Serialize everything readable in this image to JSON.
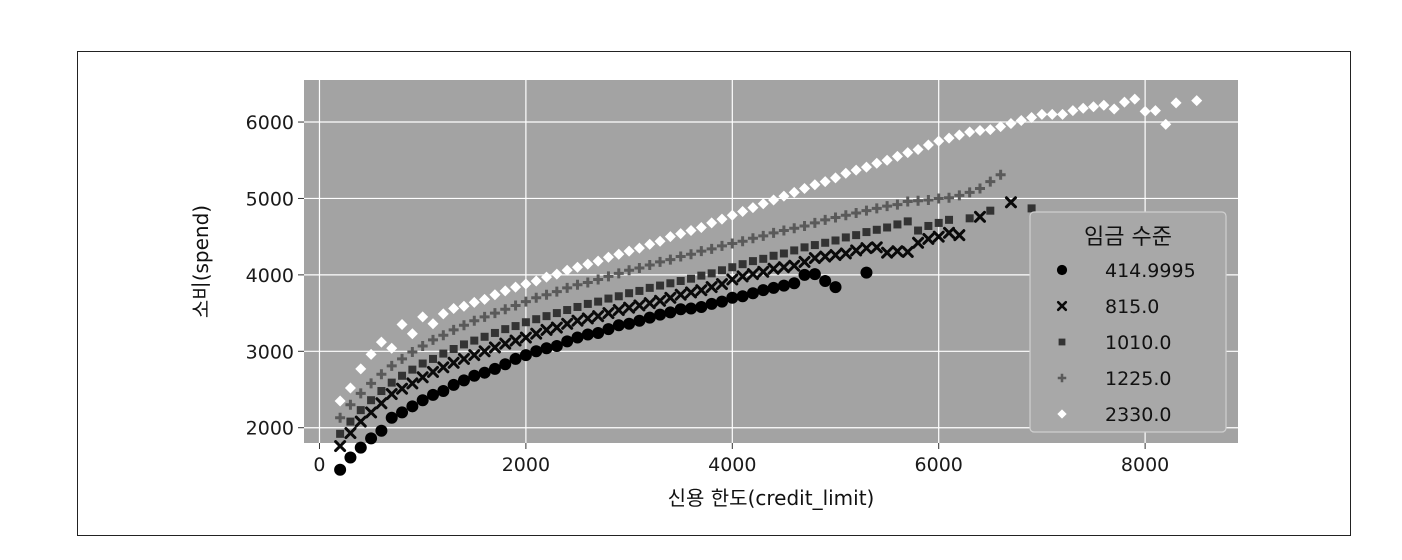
{
  "chart_data": {
    "type": "scatter",
    "title": "",
    "xlabel": "신용 한도(credit_limit)",
    "ylabel": "소비(spend)",
    "xlim": [
      -150,
      8900
    ],
    "ylim": [
      1800,
      6550
    ],
    "xticks": [
      0,
      2000,
      4000,
      6000,
      8000
    ],
    "yticks": [
      2000,
      3000,
      4000,
      5000,
      6000
    ],
    "grid": true,
    "legend": {
      "title": "임금 수준",
      "placement": "right"
    },
    "colors": {
      "background": "#a3a3a3",
      "grid": "#ffffff"
    },
    "series": [
      {
        "name": "414.9995",
        "marker": "circle",
        "color": "#000000",
        "x": [
          200,
          300,
          400,
          500,
          600,
          700,
          800,
          900,
          1000,
          1100,
          1200,
          1300,
          1400,
          1500,
          1600,
          1700,
          1800,
          1900,
          2000,
          2100,
          2200,
          2300,
          2400,
          2500,
          2600,
          2700,
          2800,
          2900,
          3000,
          3100,
          3200,
          3300,
          3400,
          3500,
          3600,
          3700,
          3800,
          3900,
          4000,
          4100,
          4200,
          4300,
          4400,
          4500,
          4600,
          4700,
          4800,
          4900,
          5000,
          5300
        ],
        "y": [
          1450,
          1610,
          1740,
          1860,
          1960,
          2130,
          2200,
          2280,
          2360,
          2430,
          2480,
          2560,
          2620,
          2680,
          2720,
          2770,
          2830,
          2900,
          2950,
          3000,
          3040,
          3070,
          3130,
          3180,
          3220,
          3240,
          3290,
          3340,
          3360,
          3400,
          3440,
          3480,
          3510,
          3550,
          3560,
          3580,
          3620,
          3650,
          3700,
          3720,
          3760,
          3800,
          3830,
          3860,
          3890,
          4000,
          4010,
          3920,
          3840,
          4030
        ]
      },
      {
        "name": "815.0",
        "marker": "x",
        "color": "#0a0a0a",
        "x": [
          200,
          300,
          400,
          500,
          600,
          700,
          800,
          900,
          1000,
          1100,
          1200,
          1300,
          1400,
          1500,
          1600,
          1700,
          1800,
          1900,
          2000,
          2100,
          2200,
          2300,
          2400,
          2500,
          2600,
          2700,
          2800,
          2900,
          3000,
          3100,
          3200,
          3300,
          3400,
          3500,
          3600,
          3700,
          3800,
          3900,
          4000,
          4100,
          4200,
          4300,
          4400,
          4500,
          4600,
          4700,
          4800,
          4900,
          5000,
          5100,
          5200,
          5300,
          5400,
          5500,
          5600,
          5700,
          5800,
          5900,
          6000,
          6100,
          6200,
          6400,
          6700
        ],
        "y": [
          1760,
          1930,
          2080,
          2200,
          2320,
          2440,
          2510,
          2580,
          2660,
          2730,
          2790,
          2850,
          2900,
          2950,
          3000,
          3050,
          3100,
          3140,
          3180,
          3230,
          3280,
          3310,
          3360,
          3400,
          3430,
          3460,
          3500,
          3540,
          3570,
          3600,
          3630,
          3660,
          3700,
          3740,
          3770,
          3800,
          3840,
          3880,
          3940,
          3980,
          4010,
          4040,
          4080,
          4100,
          4120,
          4170,
          4220,
          4240,
          4260,
          4280,
          4320,
          4350,
          4360,
          4290,
          4310,
          4300,
          4420,
          4470,
          4500,
          4550,
          4520,
          4760,
          4950
        ]
      },
      {
        "name": "1010.0",
        "marker": "square",
        "color": "#333333",
        "x": [
          200,
          300,
          400,
          500,
          600,
          700,
          800,
          900,
          1000,
          1100,
          1200,
          1300,
          1400,
          1500,
          1600,
          1700,
          1800,
          1900,
          2000,
          2100,
          2200,
          2300,
          2400,
          2500,
          2600,
          2700,
          2800,
          2900,
          3000,
          3100,
          3200,
          3300,
          3400,
          3500,
          3600,
          3700,
          3800,
          3900,
          4000,
          4100,
          4200,
          4300,
          4400,
          4500,
          4600,
          4700,
          4800,
          4900,
          5000,
          5100,
          5200,
          5300,
          5400,
          5500,
          5600,
          5700,
          5800,
          5900,
          6000,
          6100,
          6300,
          6500,
          6900
        ],
        "y": [
          1920,
          2080,
          2230,
          2360,
          2480,
          2590,
          2680,
          2760,
          2840,
          2900,
          2970,
          3030,
          3090,
          3140,
          3190,
          3240,
          3290,
          3330,
          3380,
          3420,
          3460,
          3500,
          3540,
          3580,
          3620,
          3650,
          3690,
          3720,
          3760,
          3790,
          3830,
          3860,
          3890,
          3920,
          3950,
          3990,
          4020,
          4060,
          4100,
          4140,
          4180,
          4210,
          4250,
          4280,
          4320,
          4360,
          4390,
          4420,
          4450,
          4490,
          4520,
          4560,
          4590,
          4620,
          4660,
          4700,
          4580,
          4640,
          4680,
          4720,
          4740,
          4840,
          4870
        ]
      },
      {
        "name": "1225.0",
        "marker": "plus",
        "color": "#5a5a5a",
        "x": [
          200,
          300,
          400,
          500,
          600,
          700,
          800,
          900,
          1000,
          1100,
          1200,
          1300,
          1400,
          1500,
          1600,
          1700,
          1800,
          1900,
          2000,
          2100,
          2200,
          2300,
          2400,
          2500,
          2600,
          2700,
          2800,
          2900,
          3000,
          3100,
          3200,
          3300,
          3400,
          3500,
          3600,
          3700,
          3800,
          3900,
          4000,
          4100,
          4200,
          4300,
          4400,
          4500,
          4600,
          4700,
          4800,
          4900,
          5000,
          5100,
          5200,
          5300,
          5400,
          5500,
          5600,
          5700,
          5800,
          5900,
          6000,
          6100,
          6200,
          6300,
          6400,
          6500,
          6600
        ],
        "y": [
          2130,
          2300,
          2450,
          2580,
          2700,
          2810,
          2900,
          2990,
          3070,
          3150,
          3210,
          3280,
          3340,
          3400,
          3450,
          3500,
          3550,
          3600,
          3650,
          3700,
          3740,
          3780,
          3830,
          3870,
          3900,
          3940,
          3980,
          4020,
          4060,
          4090,
          4130,
          4170,
          4200,
          4240,
          4270,
          4310,
          4340,
          4380,
          4410,
          4440,
          4480,
          4510,
          4550,
          4580,
          4610,
          4640,
          4680,
          4720,
          4750,
          4780,
          4810,
          4840,
          4870,
          4900,
          4920,
          4960,
          4970,
          4980,
          5000,
          5010,
          5040,
          5080,
          5130,
          5220,
          5310
        ]
      },
      {
        "name": "2330.0",
        "marker": "diamond",
        "color": "#ffffff",
        "x": [
          200,
          300,
          400,
          500,
          600,
          700,
          800,
          900,
          1000,
          1100,
          1200,
          1300,
          1400,
          1500,
          1600,
          1700,
          1800,
          1900,
          2000,
          2100,
          2200,
          2300,
          2400,
          2500,
          2600,
          2700,
          2800,
          2900,
          3000,
          3100,
          3200,
          3300,
          3400,
          3500,
          3600,
          3700,
          3800,
          3900,
          4000,
          4100,
          4200,
          4300,
          4400,
          4500,
          4600,
          4700,
          4800,
          4900,
          5000,
          5100,
          5200,
          5300,
          5400,
          5500,
          5600,
          5700,
          5800,
          5900,
          6000,
          6100,
          6200,
          6300,
          6400,
          6500,
          6600,
          6700,
          6800,
          6900,
          7000,
          7100,
          7200,
          7300,
          7400,
          7500,
          7600,
          7700,
          7800,
          7900,
          8000,
          8100,
          8200,
          8300,
          8500
        ],
        "y": [
          2350,
          2520,
          2770,
          2960,
          3120,
          3040,
          3350,
          3230,
          3450,
          3360,
          3490,
          3560,
          3590,
          3640,
          3680,
          3740,
          3790,
          3840,
          3880,
          3920,
          3970,
          4010,
          4060,
          4100,
          4140,
          4180,
          4230,
          4270,
          4310,
          4350,
          4400,
          4440,
          4500,
          4540,
          4580,
          4620,
          4680,
          4730,
          4780,
          4830,
          4880,
          4930,
          4980,
          5030,
          5080,
          5130,
          5180,
          5220,
          5270,
          5330,
          5370,
          5410,
          5460,
          5500,
          5550,
          5600,
          5640,
          5700,
          5750,
          5790,
          5830,
          5870,
          5890,
          5900,
          5940,
          5980,
          6020,
          6060,
          6100,
          6100,
          6100,
          6150,
          6180,
          6200,
          6220,
          6170,
          6260,
          6300,
          6140,
          6150,
          5970,
          6250,
          6280
        ]
      }
    ]
  }
}
